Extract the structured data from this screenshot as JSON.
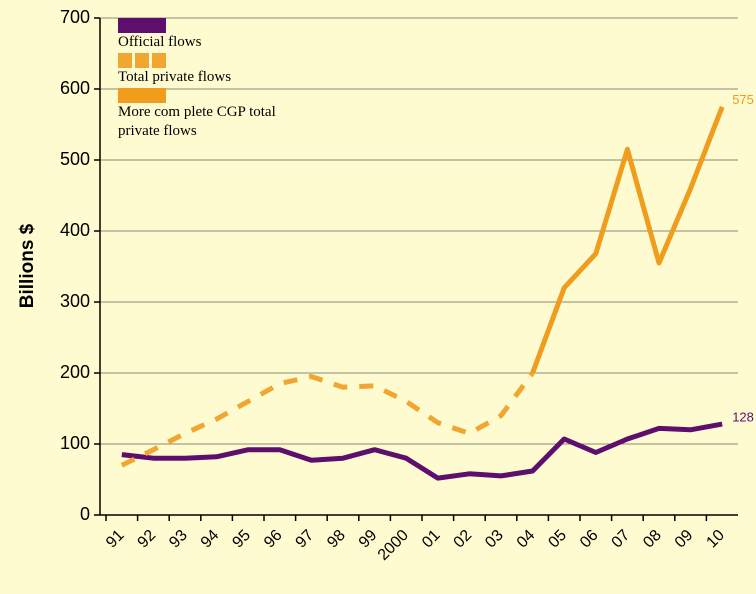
{
  "chart_data": {
    "type": "line",
    "y_label": "Billions $",
    "categories": [
      "91",
      "92",
      "93",
      "94",
      "95",
      "96",
      "97",
      "98",
      "99",
      "2000",
      "01",
      "02",
      "03",
      "04",
      "05",
      "06",
      "07",
      "08",
      "09",
      "10"
    ],
    "ylim": [
      0,
      700
    ],
    "yticks": [
      0,
      100,
      200,
      300,
      400,
      500,
      600,
      700
    ],
    "grid": true,
    "legend": "top-left",
    "series": [
      {
        "name": "Official flows",
        "color": "#5e0f6e",
        "style": "solid",
        "values": [
          85,
          80,
          80,
          82,
          92,
          92,
          77,
          80,
          92,
          80,
          52,
          58,
          55,
          62,
          107,
          88,
          107,
          122,
          120,
          128
        ],
        "value_labels": [
          null,
          null,
          null,
          null,
          null,
          null,
          null,
          null,
          null,
          null,
          null,
          null,
          null,
          null,
          null,
          null,
          null,
          null,
          null,
          "128"
        ]
      },
      {
        "name": "Total private flows",
        "color": "#f0a630",
        "style": "dashed",
        "values": [
          70,
          92,
          115,
          135,
          160,
          185,
          195,
          180,
          182,
          160,
          130,
          115,
          140,
          200,
          null,
          null,
          null,
          null,
          null,
          null
        ]
      },
      {
        "name": "More com plete CGP total private flows",
        "color": "#f09c1c",
        "style": "solid",
        "values": [
          null,
          null,
          null,
          null,
          null,
          null,
          null,
          null,
          null,
          null,
          null,
          null,
          null,
          200,
          320,
          368,
          515,
          355,
          460,
          575
        ],
        "value_labels": [
          null,
          null,
          null,
          null,
          null,
          null,
          null,
          null,
          null,
          null,
          null,
          null,
          null,
          null,
          null,
          null,
          null,
          null,
          null,
          "575"
        ]
      }
    ]
  }
}
